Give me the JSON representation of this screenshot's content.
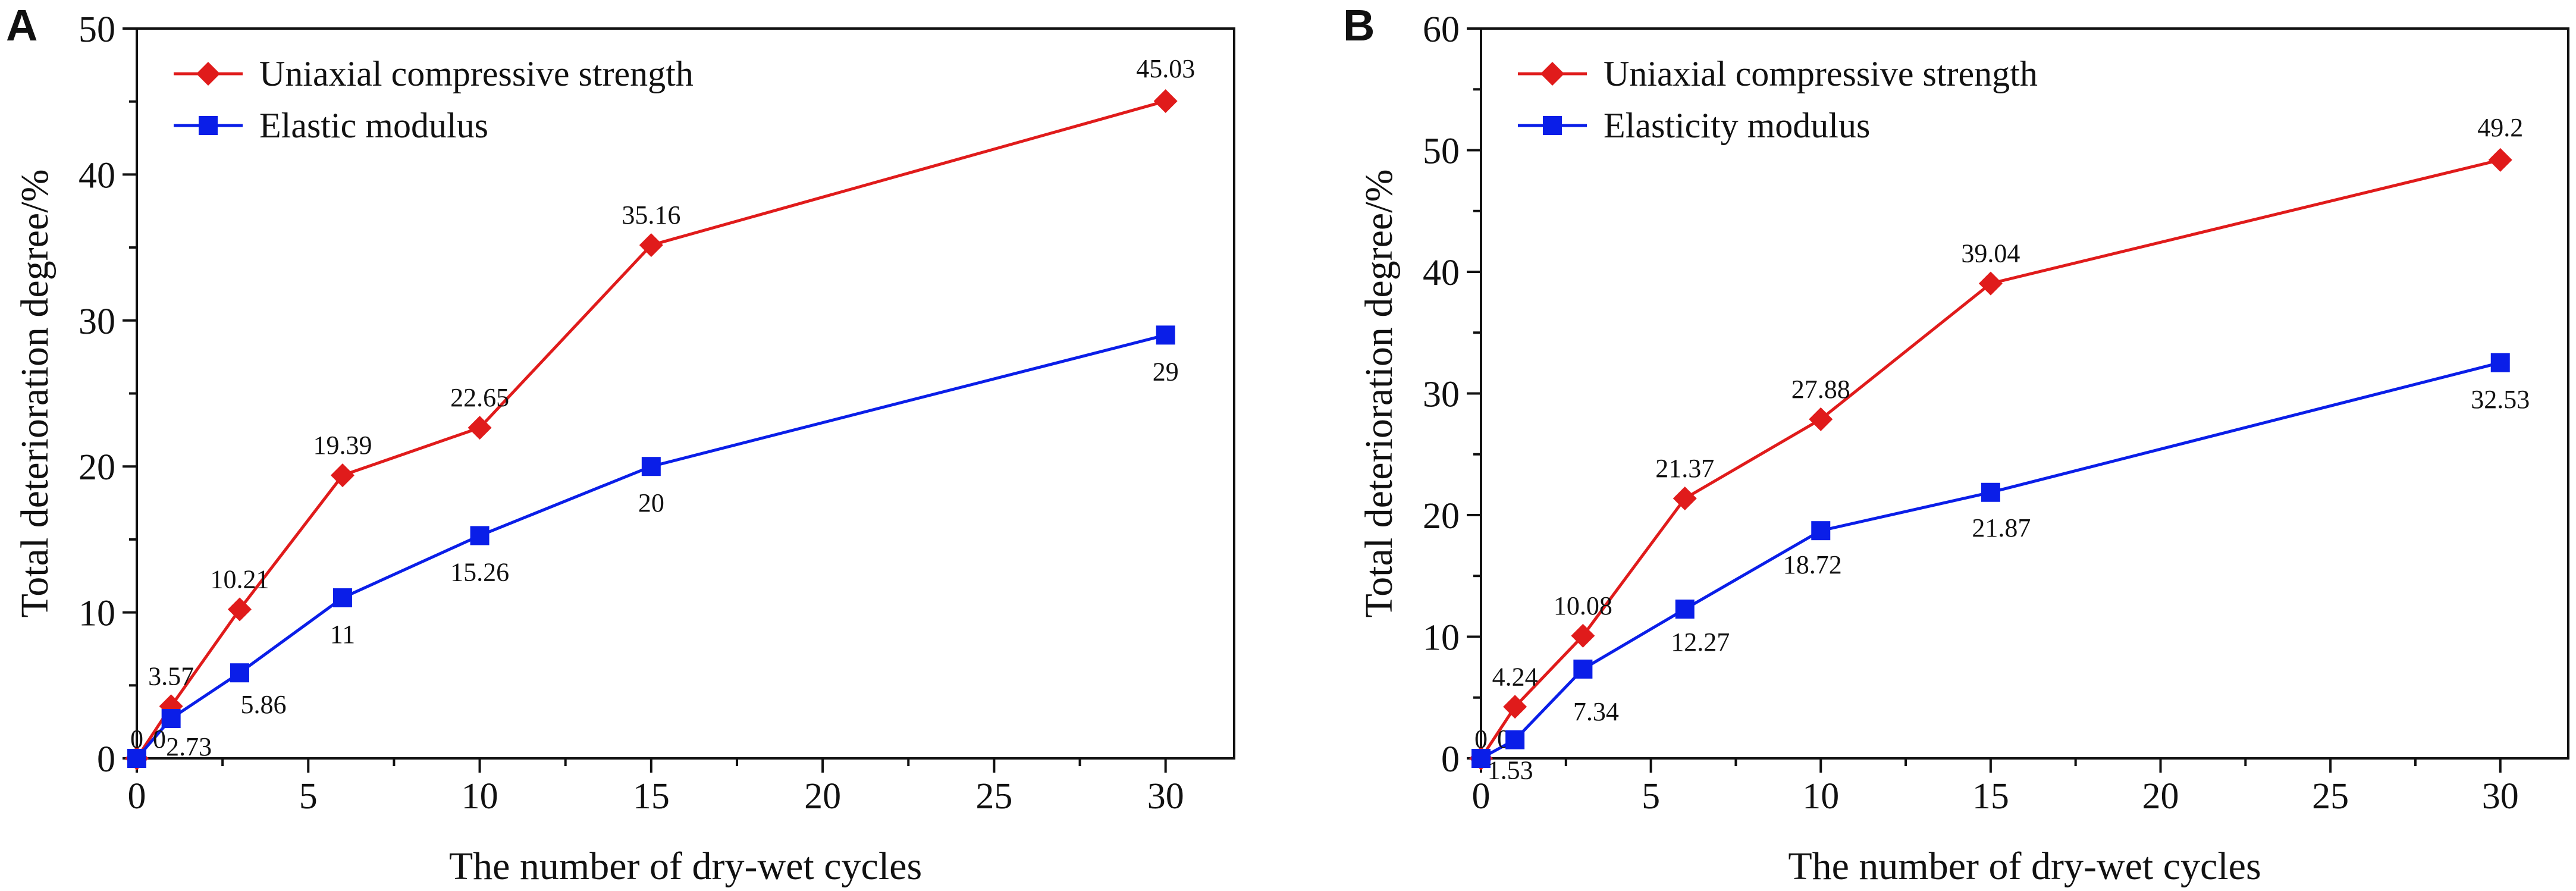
{
  "chart_data": [
    {
      "type": "line",
      "panel": "A",
      "xlabel": "The number of dry-wet cycles",
      "ylabel": "Total deterioration degree/%",
      "xlim": [
        0,
        32
      ],
      "ylim": [
        0,
        50
      ],
      "xticks": [
        0,
        5,
        10,
        15,
        20,
        25,
        30
      ],
      "yticks": [
        0,
        10,
        20,
        30,
        40,
        50
      ],
      "legend_position": "top-left",
      "series": [
        {
          "name": "Uniaxial compressive strength",
          "color": "#e01b1b",
          "marker": "diamond",
          "x": [
            0,
            1,
            3,
            6,
            10,
            15,
            30
          ],
          "values": [
            0,
            3.57,
            10.21,
            19.39,
            22.65,
            35.16,
            45.03
          ],
          "labels": [
            "0",
            "3.57",
            "10.21",
            "19.39",
            "22.65",
            "35.16",
            "45.03"
          ],
          "label_side": "above"
        },
        {
          "name": "Elastic modulus",
          "color": "#0a1ee8",
          "marker": "square",
          "x": [
            0,
            1,
            3,
            6,
            10,
            15,
            30
          ],
          "values": [
            0,
            2.73,
            5.86,
            11,
            15.26,
            20,
            29
          ],
          "labels": [
            "0",
            "2.73",
            "5.86",
            "11",
            "15.26",
            "20",
            "29"
          ],
          "label_side": "below"
        }
      ]
    },
    {
      "type": "line",
      "panel": "B",
      "xlabel": "The number of dry-wet cycles",
      "ylabel": "Total deterioration degree/%",
      "xlim": [
        0,
        32
      ],
      "ylim": [
        0,
        60
      ],
      "xticks": [
        0,
        5,
        10,
        15,
        20,
        25,
        30
      ],
      "yticks": [
        0,
        10,
        20,
        30,
        40,
        50,
        60
      ],
      "legend_position": "top-left",
      "series": [
        {
          "name": "Uniaxial compressive strength",
          "color": "#e01b1b",
          "marker": "diamond",
          "x": [
            0,
            1,
            3,
            6,
            10,
            15,
            30
          ],
          "values": [
            0,
            4.24,
            10.08,
            21.37,
            27.88,
            39.04,
            49.2
          ],
          "labels": [
            "0",
            "4.24",
            "10.08",
            "21.37",
            "27.88",
            "39.04",
            "49.2"
          ],
          "label_side": "above"
        },
        {
          "name": "Elasticity modulus",
          "color": "#0a1ee8",
          "marker": "square",
          "x": [
            0,
            1,
            3,
            6,
            10,
            15,
            30
          ],
          "values": [
            0,
            1.53,
            7.34,
            12.27,
            18.72,
            21.87,
            32.53
          ],
          "labels": [
            "0",
            "1.53",
            "7.34",
            "12.27",
            "18.72",
            "21.87",
            "32.53"
          ],
          "label_side": "below"
        }
      ]
    }
  ]
}
